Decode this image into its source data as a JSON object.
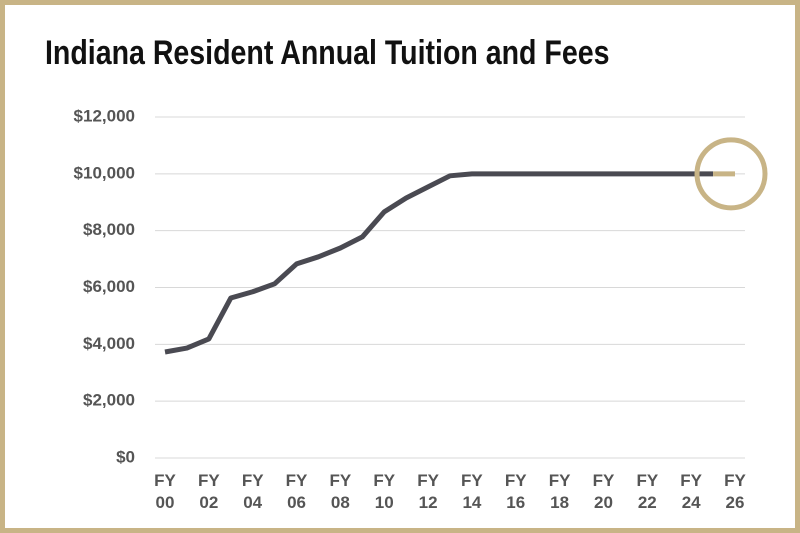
{
  "chart_data": {
    "type": "line",
    "title": "Indiana Resident Annual Tuition and Fees",
    "categories": [
      "FY 00",
      null,
      "FY 02",
      null,
      "FY 04",
      null,
      "FY 06",
      null,
      "FY 08",
      null,
      "FY 10",
      null,
      "FY 12",
      null,
      "FY 14",
      null,
      "FY 16",
      null,
      "FY 18",
      null,
      "FY 20",
      null,
      "FY 22",
      null,
      "FY 24",
      null,
      "FY 26"
    ],
    "series": [
      {
        "color": "#4a4a52",
        "values": [
          3730,
          3870,
          4190,
          5630,
          5850,
          6130,
          6830,
          7080,
          7390,
          7780,
          8660,
          9150,
          9540,
          9930,
          10000,
          10000,
          10000,
          10000,
          10000,
          10000,
          10000,
          10000,
          10000,
          10000,
          10000,
          10000,
          null
        ]
      },
      {
        "color": "#c8b486",
        "values": [
          null,
          null,
          null,
          null,
          null,
          null,
          null,
          null,
          null,
          null,
          null,
          null,
          null,
          null,
          null,
          null,
          null,
          null,
          null,
          null,
          null,
          null,
          null,
          null,
          null,
          10000,
          10000
        ]
      }
    ],
    "ylim": [
      0,
      12000
    ],
    "yticks": [
      {
        "value": 0,
        "label": "$0"
      },
      {
        "value": 2000,
        "label": "$2,000"
      },
      {
        "value": 4000,
        "label": "$4,000"
      },
      {
        "value": 6000,
        "label": "$6,000"
      },
      {
        "value": 8000,
        "label": "$8,000"
      },
      {
        "value": 10000,
        "label": "$10,000"
      },
      {
        "value": 12000,
        "label": "$12,000"
      }
    ],
    "grid": true
  }
}
